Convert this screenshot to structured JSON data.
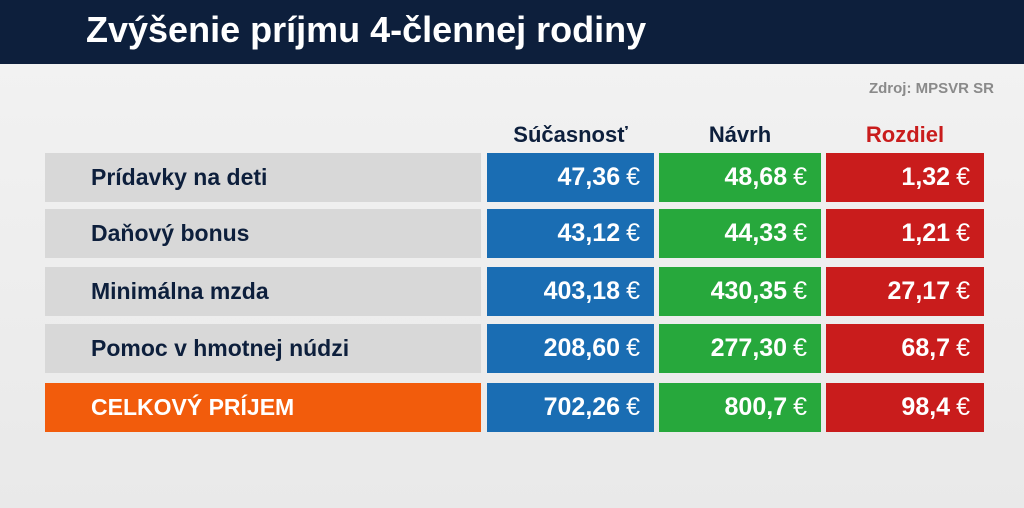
{
  "header": {
    "title": "Zvýšenie príjmu 4-člennej rodiny"
  },
  "source": "Zdroj: MPSVR SR",
  "colors": {
    "current": "#1a6db3",
    "proposal": "#27a83c",
    "difference": "#c91c1c",
    "total_label": "#f25c0c"
  },
  "chart_data": {
    "type": "table",
    "title": "Zvýšenie príjmu 4-člennej rodiny",
    "source": "Zdroj: MPSVR SR",
    "columns": [
      "Súčasnosť",
      "Návrh",
      "Rozdiel"
    ],
    "currency": "€",
    "rows": [
      {
        "label": "Prídavky na deti",
        "values": [
          "47,36",
          "48,68",
          "1,32"
        ]
      },
      {
        "label": "Daňový bonus",
        "values": [
          "43,12",
          "44,33",
          "1,21"
        ]
      },
      {
        "label": "Minimálna mzda",
        "values": [
          "403,18",
          "430,35",
          "27,17"
        ]
      },
      {
        "label": "Pomoc v hmotnej núdzi",
        "values": [
          "208,60",
          "277,30",
          "68,7"
        ]
      },
      {
        "label": "CELKOVÝ PRÍJEM",
        "values": [
          "702,26",
          "800,7",
          "98,4"
        ]
      }
    ]
  }
}
